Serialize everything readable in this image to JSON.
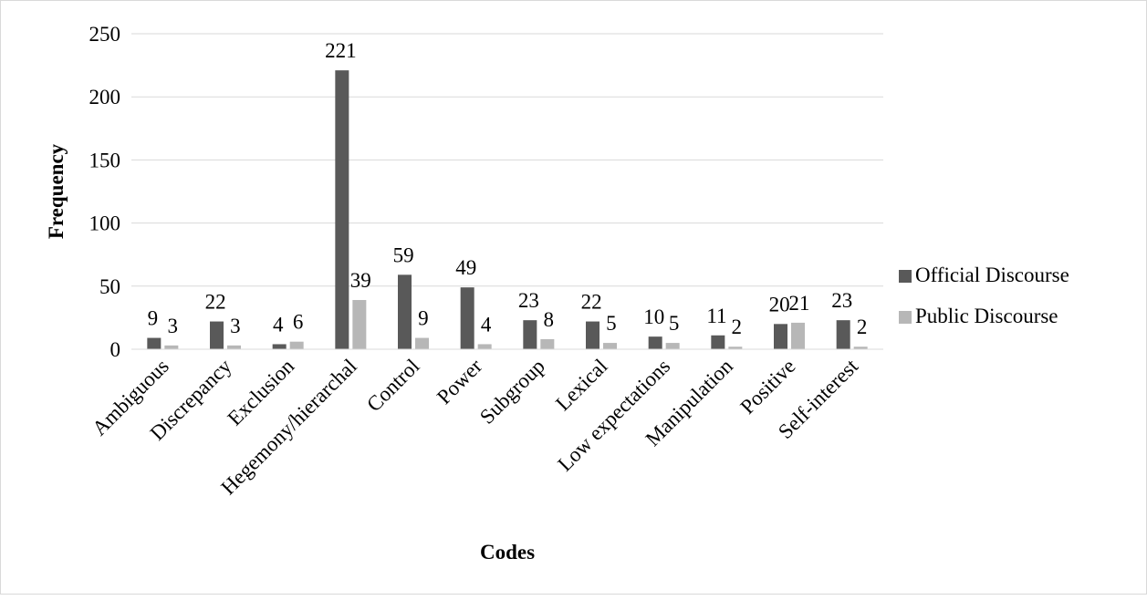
{
  "chart_data": {
    "type": "bar",
    "title": "",
    "xlabel": "Codes",
    "ylabel": "Frequency",
    "ylim": [
      0,
      250
    ],
    "yticks": [
      0,
      50,
      100,
      150,
      200,
      250
    ],
    "grid": true,
    "legend_position": "right",
    "categories": [
      "Ambiguous",
      "Discrepancy",
      "Exclusion",
      "Hegemony/hierarchal",
      "Control",
      "Power",
      "Subgroup",
      "Lexical",
      "Low expectations",
      "Manipulation",
      "Positive",
      "Self-interest"
    ],
    "series": [
      {
        "name": "Official Discourse",
        "color": "#595959",
        "values": [
          9,
          22,
          4,
          221,
          59,
          49,
          23,
          22,
          10,
          11,
          20,
          23
        ]
      },
      {
        "name": "Public Discourse",
        "color": "#b7b7b7",
        "values": [
          3,
          3,
          6,
          39,
          9,
          4,
          8,
          5,
          5,
          2,
          21,
          2
        ]
      }
    ]
  }
}
